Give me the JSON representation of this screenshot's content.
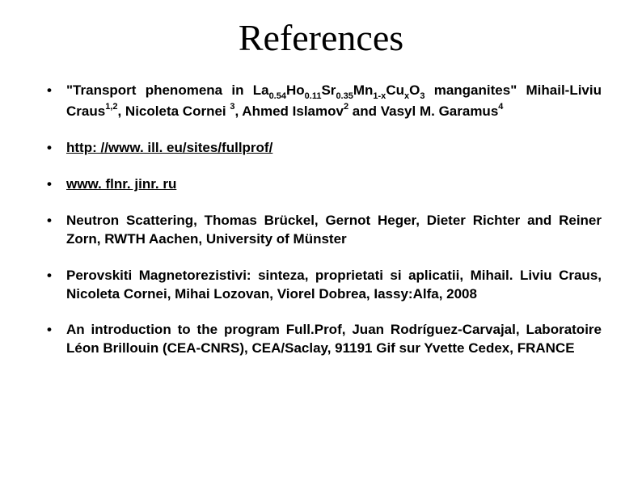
{
  "title": "References",
  "ref1": {
    "prefix": "\"Transport phenomena in La",
    "sub1": "0.54",
    "t2": "Ho",
    "sub2": "0.11",
    "t3": "Sr",
    "sub3": "0.35",
    "t4": "Mn",
    "sub4": "1-x",
    "t5": "Cu",
    "sub5": "x",
    "t6": "O",
    "sub6": "3",
    "t7": " manganites\" Mihail-Liviu Craus",
    "sup1": "1,2",
    "t8": ", Nicoleta Cornei ",
    "sup2": "3",
    "t9": ", Ahmed Islamov",
    "sup3": "2",
    "t10": " and Vasyl M. Garamus",
    "sup4": "4"
  },
  "ref2": "http: //www. ill. eu/sites/fullprof/",
  "ref3": "www. flnr. jinr. ru",
  "ref4": "Neutron Scattering, Thomas Brückel, Gernot Heger, Dieter Richter and Reiner Zorn, RWTH Aachen, University of Münster",
  "ref5": " Perovskiti Magnetorezistivi: sinteza, proprietati si aplicatii, Mihail. Liviu Craus, Nicoleta Cornei, Mihai Lozovan, Viorel Dobrea, Iassy:Alfa, 2008",
  "ref6": " An introduction to the program Full.Prof, Juan Rodríguez-Carvajal, Laboratoire Léon Brillouin (CEA-CNRS), CEA/Saclay, 91191 Gif sur Yvette Cedex, FRANCE"
}
